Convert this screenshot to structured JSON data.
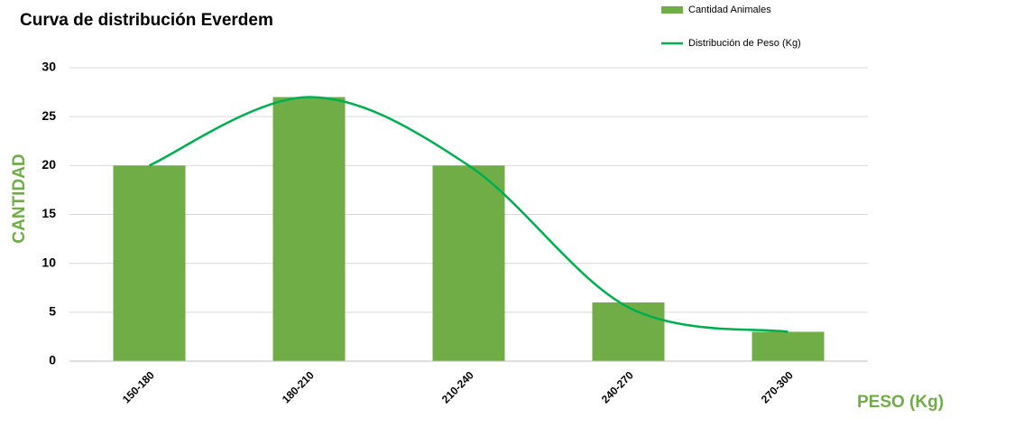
{
  "chart_data": {
    "type": "bar",
    "title": "Curva de distribución Everdem",
    "y_label": "CANTIDAD",
    "x_label": "PESO (Kg)",
    "categories": [
      "150-180",
      "180-210",
      "210-240",
      "240-270",
      "270-300"
    ],
    "series": [
      {
        "name": "Cantidad Animales",
        "type": "bar",
        "color": "#70ad47",
        "values": [
          20,
          27,
          20,
          6,
          3
        ]
      },
      {
        "name": "Distribución de Peso (Kg)",
        "type": "line",
        "color": "#00b050",
        "values": [
          20,
          27,
          20,
          5.5,
          3
        ]
      }
    ],
    "ylim": [
      0,
      30
    ],
    "yticks": [
      0,
      5,
      10,
      15,
      20,
      25,
      30
    ],
    "grid": true,
    "legend": "top-right",
    "axis_title_color": "#70ad47"
  }
}
